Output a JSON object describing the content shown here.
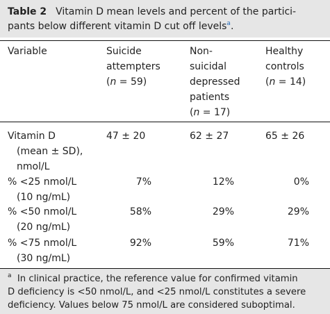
{
  "caption": {
    "table_label": "Table 2",
    "title_line1": "Vitamin D mean levels and percent of the partici-",
    "title_line2": "pants below different vitamin D cut off levels",
    "footnote_marker": "a"
  },
  "columns": {
    "variable": "Variable",
    "suicide": [
      "Suicide",
      "attempters",
      "(n = 59)"
    ],
    "nonsuicidal": [
      "Non-",
      "suicidal",
      "depressed",
      "patients",
      "(n = 17)"
    ],
    "healthy": [
      "Healthy",
      "controls",
      "(n = 14)"
    ]
  },
  "rows": [
    {
      "label_lines": [
        "Vitamin D",
        "(mean ± SD),",
        "nmol/L"
      ],
      "suicide": "47 ± 20",
      "nonsuicidal": "62 ± 27",
      "healthy": "65 ± 26"
    },
    {
      "label_lines": [
        "% <25 nmol/L",
        "(10 ng/mL)"
      ],
      "suicide": "7%",
      "nonsuicidal": "12%",
      "healthy": "0%"
    },
    {
      "label_lines": [
        "% <50 nmol/L",
        "(20 ng/mL)"
      ],
      "suicide": "58%",
      "nonsuicidal": "29%",
      "healthy": "29%"
    },
    {
      "label_lines": [
        "% <75 nmol/L",
        "(30 ng/mL)"
      ],
      "suicide": "92%",
      "nonsuicidal": "59%",
      "healthy": "71%"
    }
  ],
  "footnote": {
    "marker": "a",
    "line1": "In clinical practice, the reference value for confirmed vitamin",
    "line2": "D deficiency is <50 nmol/L, and <25 nmol/L constitutes a severe",
    "line3": "deficiency. Values below 75 nmol/L are considered suboptimal."
  },
  "colors": {
    "accent": "#2a6ebb",
    "shading": "#e6e6e6"
  }
}
